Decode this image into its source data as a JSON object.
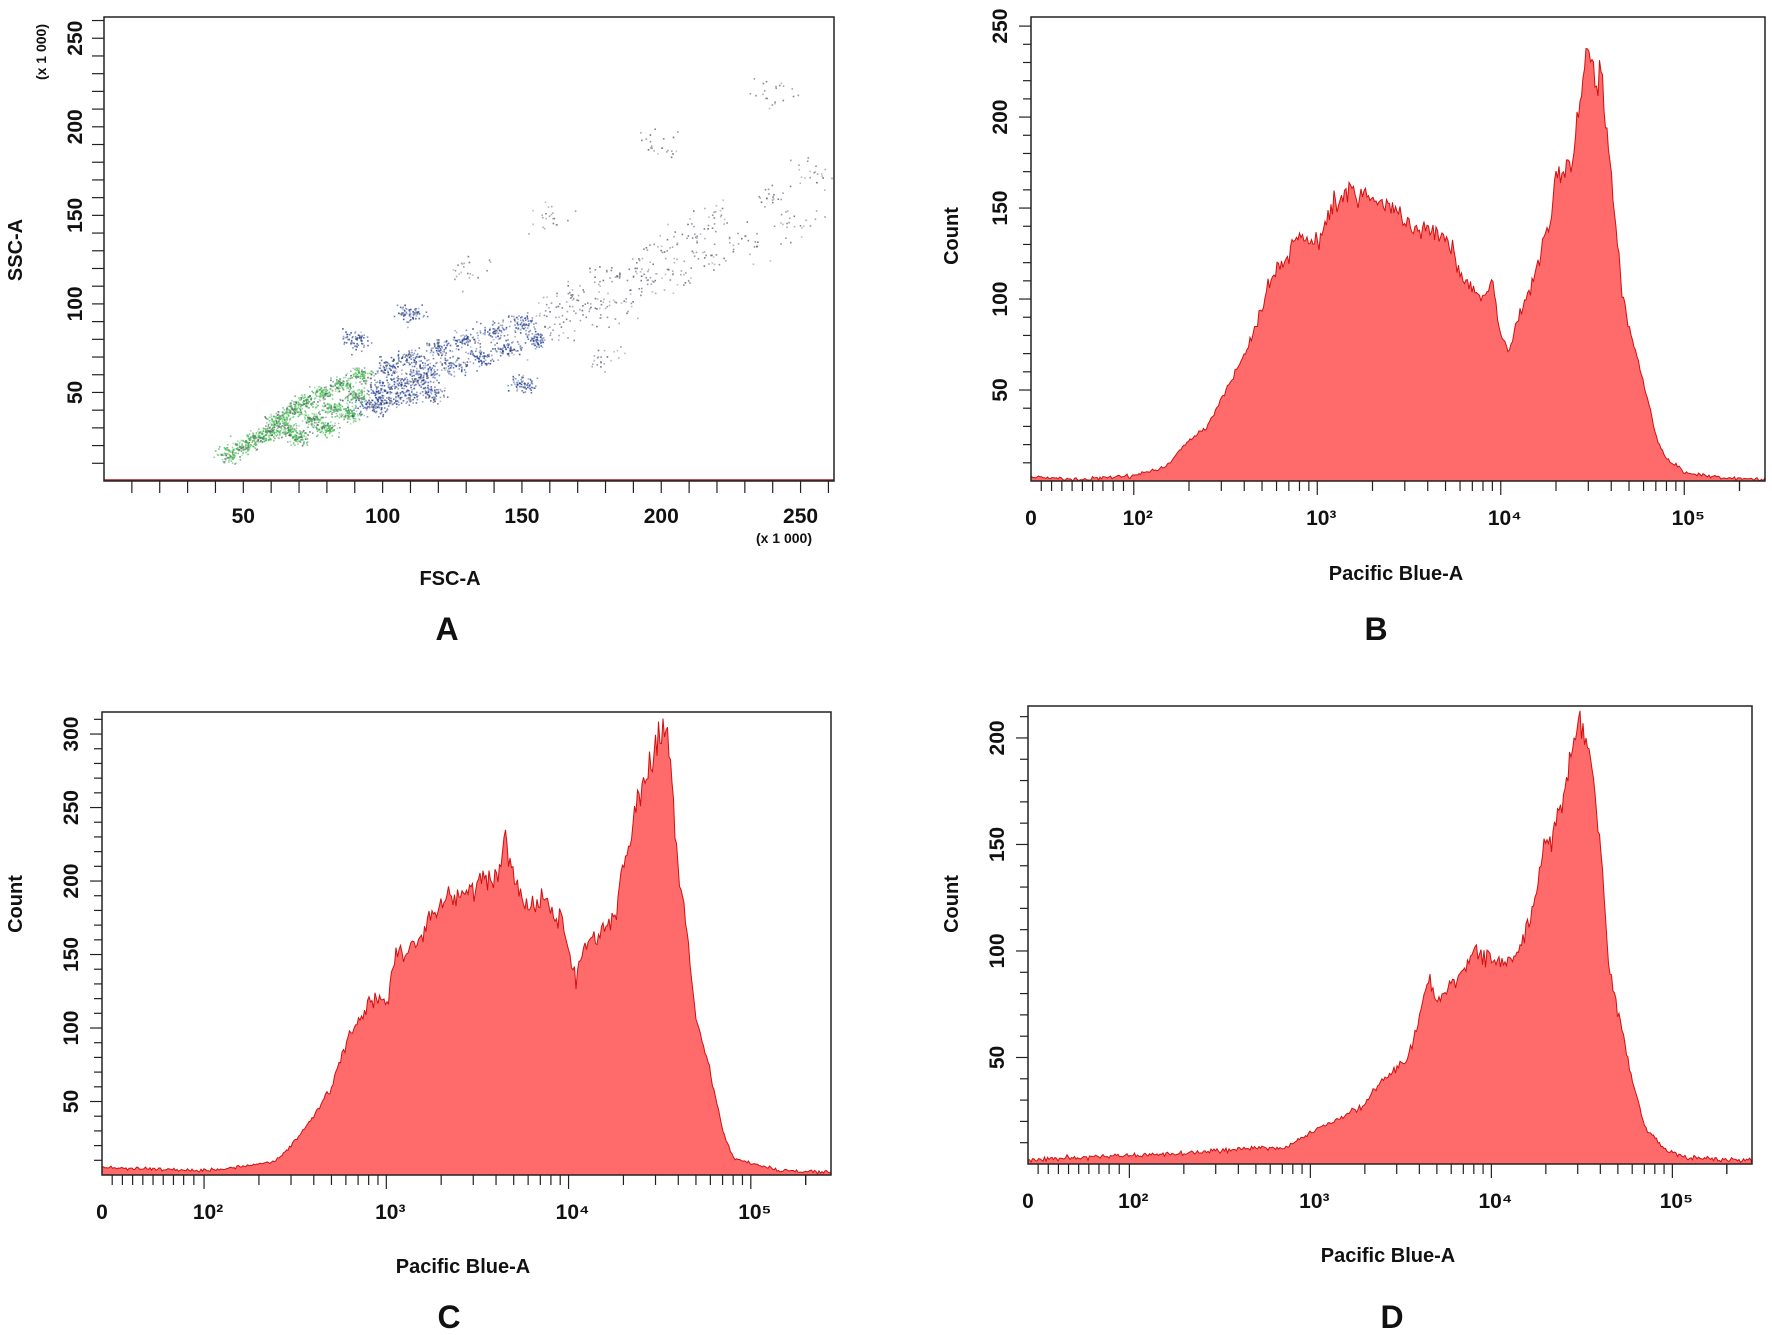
{
  "colors": {
    "histogram_fill": "#ff6b6b",
    "histogram_line": "#d01010",
    "scatter_green": "#3cb84a",
    "scatter_blue": "#1a3a9a",
    "scatter_gray": "#5a5a6a",
    "axis": "#222222"
  },
  "chart_data": [
    {
      "panel_label": "A",
      "type": "scatter",
      "xlabel": "FSC-A",
      "ylabel": "SSC-A",
      "x_unit": "(x 1 000)",
      "y_unit": "(x 1 000)",
      "xlim": [
        0,
        262
      ],
      "ylim": [
        0,
        262
      ],
      "x_ticks": [
        "50",
        "100",
        "150",
        "200",
        "250"
      ],
      "y_ticks": [
        "50",
        "100",
        "150",
        "200",
        "250"
      ],
      "x_tick_values": [
        50,
        100,
        150,
        200,
        250
      ],
      "y_tick_values": [
        50,
        100,
        150,
        200,
        250
      ],
      "points": [
        [
          45,
          15
        ],
        [
          50,
          20
        ],
        [
          55,
          25
        ],
        [
          60,
          28
        ],
        [
          62,
          35
        ],
        [
          65,
          30
        ],
        [
          68,
          40
        ],
        [
          70,
          25
        ],
        [
          72,
          45
        ],
        [
          75,
          35
        ],
        [
          78,
          50
        ],
        [
          80,
          30
        ],
        [
          82,
          42
        ],
        [
          85,
          55
        ],
        [
          88,
          38
        ],
        [
          90,
          48
        ],
        [
          92,
          60
        ],
        [
          95,
          42
        ],
        [
          98,
          52
        ],
        [
          100,
          45
        ],
        [
          102,
          65
        ],
        [
          105,
          55
        ],
        [
          108,
          48
        ],
        [
          110,
          70
        ],
        [
          112,
          58
        ],
        [
          115,
          62
        ],
        [
          118,
          50
        ],
        [
          120,
          75
        ],
        [
          125,
          65
        ],
        [
          130,
          80
        ],
        [
          135,
          70
        ],
        [
          140,
          85
        ],
        [
          145,
          75
        ],
        [
          150,
          90
        ],
        [
          155,
          80
        ],
        [
          160,
          100
        ],
        [
          165,
          88
        ],
        [
          170,
          105
        ],
        [
          175,
          95
        ],
        [
          180,
          115
        ],
        [
          185,
          100
        ],
        [
          190,
          120
        ],
        [
          195,
          110
        ],
        [
          200,
          130
        ],
        [
          205,
          115
        ],
        [
          210,
          140
        ],
        [
          215,
          125
        ],
        [
          220,
          150
        ],
        [
          230,
          135
        ],
        [
          240,
          160
        ],
        [
          250,
          145
        ],
        [
          255,
          175
        ],
        [
          130,
          120
        ],
        [
          160,
          150
        ],
        [
          200,
          190
        ],
        [
          240,
          220
        ],
        [
          110,
          95
        ],
        [
          90,
          80
        ],
        [
          180,
          70
        ],
        [
          150,
          55
        ]
      ]
    },
    {
      "panel_label": "B",
      "type": "area",
      "xlabel": "Pacific Blue-A",
      "ylabel": "Count",
      "x_scale": "biexponential",
      "xlim": [
        0,
        262144
      ],
      "ylim": [
        0,
        255
      ],
      "x_ticks": [
        "0",
        "10²",
        "10³",
        "10⁴",
        "10⁵"
      ],
      "x_tick_values": [
        0,
        100,
        1000,
        10000,
        100000
      ],
      "y_ticks": [
        "50",
        "100",
        "150",
        "200",
        "250"
      ],
      "y_tick_values": [
        50,
        100,
        150,
        200,
        250
      ],
      "x": [
        0,
        50,
        100,
        150,
        200,
        250,
        300,
        400,
        500,
        600,
        700,
        800,
        1000,
        1200,
        1500,
        2000,
        2500,
        3000,
        4000,
        5000,
        6000,
        7000,
        8000,
        9000,
        10000,
        11000,
        13000,
        15000,
        18000,
        20000,
        25000,
        30000,
        33000,
        35000,
        40000,
        45000,
        50000,
        60000,
        70000,
        80000,
        100000,
        150000,
        262000
      ],
      "y": [
        2,
        1,
        3,
        8,
        22,
        30,
        45,
        70,
        95,
        120,
        125,
        135,
        130,
        150,
        160,
        150,
        155,
        140,
        138,
        135,
        115,
        105,
        100,
        110,
        80,
        70,
        95,
        110,
        140,
        165,
        180,
        245,
        215,
        230,
        170,
        110,
        85,
        55,
        25,
        12,
        5,
        2,
        1
      ]
    },
    {
      "panel_label": "C",
      "type": "area",
      "xlabel": "Pacific Blue-A",
      "ylabel": "Count",
      "x_scale": "biexponential",
      "xlim": [
        0,
        262144
      ],
      "ylim": [
        0,
        315
      ],
      "x_ticks": [
        "0",
        "10²",
        "10³",
        "10⁴",
        "10⁵"
      ],
      "x_tick_values": [
        0,
        100,
        1000,
        10000,
        100000
      ],
      "y_ticks": [
        "50",
        "100",
        "150",
        "200",
        "250",
        "300"
      ],
      "y_tick_values": [
        50,
        100,
        150,
        200,
        250,
        300
      ],
      "x": [
        0,
        100,
        200,
        250,
        300,
        400,
        500,
        600,
        700,
        800,
        900,
        1000,
        1100,
        1500,
        2000,
        2500,
        3000,
        4000,
        4500,
        5000,
        6000,
        7000,
        8000,
        9000,
        10000,
        11000,
        12000,
        15000,
        18000,
        20000,
        25000,
        30000,
        35000,
        40000,
        45000,
        50000,
        60000,
        70000,
        80000,
        100000,
        150000,
        262000
      ],
      "y": [
        5,
        3,
        7,
        10,
        20,
        40,
        60,
        90,
        105,
        115,
        120,
        115,
        145,
        160,
        185,
        190,
        195,
        200,
        225,
        205,
        180,
        190,
        180,
        175,
        155,
        130,
        155,
        165,
        175,
        215,
        260,
        290,
        305,
        210,
        160,
        105,
        70,
        30,
        12,
        8,
        3,
        2
      ]
    },
    {
      "panel_label": "D",
      "type": "area",
      "xlabel": "Pacific Blue-A",
      "ylabel": "Count",
      "x_scale": "biexponential",
      "xlim": [
        0,
        262144
      ],
      "ylim": [
        0,
        215
      ],
      "x_ticks": [
        "0",
        "10²",
        "10³",
        "10⁴",
        "10⁵"
      ],
      "x_tick_values": [
        0,
        100,
        1000,
        10000,
        100000
      ],
      "y_ticks": [
        "50",
        "100",
        "150",
        "200"
      ],
      "y_tick_values": [
        50,
        100,
        150,
        200
      ],
      "x": [
        0,
        100,
        200,
        300,
        500,
        700,
        1000,
        1500,
        2000,
        2500,
        3000,
        3500,
        4000,
        4500,
        5000,
        6000,
        7000,
        8000,
        10000,
        12000,
        15000,
        18000,
        20000,
        25000,
        30000,
        35000,
        40000,
        45000,
        55000,
        60000,
        70000,
        90000,
        120000,
        262000
      ],
      "y": [
        2,
        4,
        5,
        6,
        8,
        7,
        15,
        22,
        28,
        40,
        45,
        50,
        70,
        90,
        75,
        85,
        90,
        100,
        95,
        92,
        105,
        130,
        150,
        170,
        210,
        195,
        150,
        90,
        55,
        40,
        18,
        7,
        3,
        2
      ]
    }
  ]
}
